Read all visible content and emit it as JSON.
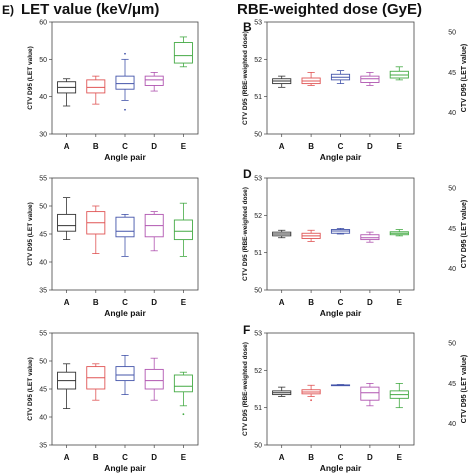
{
  "headers": {
    "left": "LET value (keV/μm)",
    "right": "RBE-weighted dose (GyE)"
  },
  "colors": {
    "A": "#333333",
    "B": "#e05555",
    "C": "#4455aa",
    "D": "#b055b0",
    "E": "#44aa44"
  },
  "chart_data": [
    {
      "panel": "E)",
      "type": "box",
      "column": "left",
      "ylabel": "CTV D95 (LET value)",
      "xlabel": "Angle pair",
      "ylim": [
        30,
        60
      ],
      "yticks": [
        30,
        40,
        50,
        60
      ],
      "categories": [
        "A",
        "B",
        "C",
        "D",
        "E"
      ],
      "boxes": [
        {
          "whislo": 37.5,
          "q1": 41,
          "med": 42.5,
          "q3": 44,
          "whishi": 44.8,
          "fliers": []
        },
        {
          "whislo": 38,
          "q1": 41,
          "med": 42.5,
          "q3": 44.5,
          "whishi": 45.5,
          "fliers": []
        },
        {
          "whislo": 39,
          "q1": 42,
          "med": 43.5,
          "q3": 45.5,
          "whishi": 50,
          "fliers": [
            36.5,
            51.5
          ]
        },
        {
          "whislo": 41.5,
          "q1": 43,
          "med": 44.5,
          "q3": 45.5,
          "whishi": 46.5,
          "fliers": []
        },
        {
          "whislo": 48,
          "q1": 49,
          "med": 51,
          "q3": 54.5,
          "whishi": 56,
          "fliers": []
        }
      ]
    },
    {
      "panel": "B",
      "type": "box",
      "column": "right",
      "ylabel": "CTV D95 (RBE-weighted dose)",
      "xlabel": "Angle pair",
      "ylim": [
        50,
        53
      ],
      "yticks": [
        50,
        51,
        52,
        53
      ],
      "categories": [
        "A",
        "B",
        "C",
        "D",
        "E"
      ],
      "boxes": [
        {
          "whislo": 51.25,
          "q1": 51.35,
          "med": 51.42,
          "q3": 51.48,
          "whishi": 51.55,
          "fliers": []
        },
        {
          "whislo": 51.3,
          "q1": 51.35,
          "med": 51.42,
          "q3": 51.5,
          "whishi": 51.65,
          "fliers": []
        },
        {
          "whislo": 51.35,
          "q1": 51.45,
          "med": 51.52,
          "q3": 51.6,
          "whishi": 51.7,
          "fliers": []
        },
        {
          "whislo": 51.3,
          "q1": 51.38,
          "med": 51.48,
          "q3": 51.55,
          "whishi": 51.65,
          "fliers": []
        },
        {
          "whislo": 51.45,
          "q1": 51.5,
          "med": 51.58,
          "q3": 51.68,
          "whishi": 51.8,
          "fliers": []
        }
      ],
      "right_axis": {
        "label": "CTV D95 (LET value)",
        "ticks": [
          "50",
          "45",
          "40"
        ]
      }
    },
    {
      "panel": "",
      "type": "box",
      "column": "left",
      "ylabel": "CTV D95 (LET value)",
      "xlabel": "Angle pair",
      "ylim": [
        35,
        55
      ],
      "yticks": [
        35,
        40,
        45,
        50,
        55
      ],
      "categories": [
        "A",
        "B",
        "C",
        "D",
        "E"
      ],
      "boxes": [
        {
          "whislo": 44,
          "q1": 45.5,
          "med": 46.5,
          "q3": 48.5,
          "whishi": 51.5,
          "fliers": []
        },
        {
          "whislo": 41.5,
          "q1": 45,
          "med": 47,
          "q3": 49,
          "whishi": 50,
          "fliers": []
        },
        {
          "whislo": 41,
          "q1": 44.5,
          "med": 45.5,
          "q3": 48,
          "whishi": 48.5,
          "fliers": []
        },
        {
          "whislo": 42,
          "q1": 44.5,
          "med": 46.5,
          "q3": 48.5,
          "whishi": 49,
          "fliers": []
        },
        {
          "whislo": 41,
          "q1": 44,
          "med": 45.5,
          "q3": 47.5,
          "whishi": 50.5,
          "fliers": []
        }
      ]
    },
    {
      "panel": "D",
      "type": "box",
      "column": "right",
      "ylabel": "CTV D95 (RBE-weighted dose)",
      "xlabel": "Angle pair",
      "ylim": [
        50,
        53
      ],
      "yticks": [
        50,
        51,
        52,
        53
      ],
      "categories": [
        "A",
        "B",
        "C",
        "D",
        "E"
      ],
      "boxes": [
        {
          "whislo": 51.4,
          "q1": 51.45,
          "med": 51.5,
          "q3": 51.55,
          "whishi": 51.6,
          "fliers": []
        },
        {
          "whislo": 51.3,
          "q1": 51.38,
          "med": 51.45,
          "q3": 51.52,
          "whishi": 51.6,
          "fliers": []
        },
        {
          "whislo": 51.5,
          "q1": 51.52,
          "med": 51.58,
          "q3": 51.62,
          "whishi": 51.65,
          "fliers": []
        },
        {
          "whislo": 51.28,
          "q1": 51.35,
          "med": 51.4,
          "q3": 51.48,
          "whishi": 51.55,
          "fliers": []
        },
        {
          "whislo": 51.45,
          "q1": 51.48,
          "med": 51.52,
          "q3": 51.56,
          "whishi": 51.62,
          "fliers": []
        }
      ],
      "right_axis": {
        "label": "CTV D95 (LET value)",
        "ticks": [
          "50",
          "45",
          "40"
        ]
      }
    },
    {
      "panel": "",
      "type": "box",
      "column": "left",
      "ylabel": "CTV D95 (LET value)",
      "xlabel": "Angle pair",
      "ylim": [
        35,
        55
      ],
      "yticks": [
        35,
        40,
        45,
        50,
        55
      ],
      "categories": [
        "A",
        "B",
        "C",
        "D",
        "E"
      ],
      "boxes": [
        {
          "whislo": 41.5,
          "q1": 45,
          "med": 46.5,
          "q3": 48,
          "whishi": 49.5,
          "fliers": []
        },
        {
          "whislo": 43,
          "q1": 45,
          "med": 47,
          "q3": 49,
          "whishi": 49.5,
          "fliers": []
        },
        {
          "whislo": 44,
          "q1": 46.5,
          "med": 47.5,
          "q3": 49,
          "whishi": 51,
          "fliers": []
        },
        {
          "whislo": 43,
          "q1": 45,
          "med": 46.5,
          "q3": 48.5,
          "whishi": 50.5,
          "fliers": []
        },
        {
          "whislo": 42,
          "q1": 44.5,
          "med": 45.5,
          "q3": 47.5,
          "whishi": 48,
          "fliers": [
            40.5
          ]
        }
      ]
    },
    {
      "panel": "F",
      "type": "box",
      "column": "right",
      "ylabel": "CTV D95 (RBE-weighted dose)",
      "xlabel": "Angle pair",
      "ylim": [
        50,
        53
      ],
      "yticks": [
        50,
        51,
        52,
        53
      ],
      "categories": [
        "A",
        "B",
        "C",
        "D",
        "E"
      ],
      "boxes": [
        {
          "whislo": 51.3,
          "q1": 51.35,
          "med": 51.4,
          "q3": 51.45,
          "whishi": 51.55,
          "fliers": []
        },
        {
          "whislo": 51.3,
          "q1": 51.37,
          "med": 51.42,
          "q3": 51.48,
          "whishi": 51.6,
          "fliers": [
            51.2
          ]
        },
        {
          "whislo": 51.6,
          "q1": 51.6,
          "med": 51.6,
          "q3": 51.61,
          "whishi": 51.62,
          "fliers": []
        },
        {
          "whislo": 51.05,
          "q1": 51.2,
          "med": 51.4,
          "q3": 51.55,
          "whishi": 51.65,
          "fliers": []
        },
        {
          "whislo": 51.0,
          "q1": 51.25,
          "med": 51.35,
          "q3": 51.45,
          "whishi": 51.65,
          "fliers": []
        }
      ],
      "right_axis": {
        "label": "CTV D95 (LET value)",
        "ticks": [
          "50",
          "45",
          "40"
        ]
      }
    }
  ]
}
